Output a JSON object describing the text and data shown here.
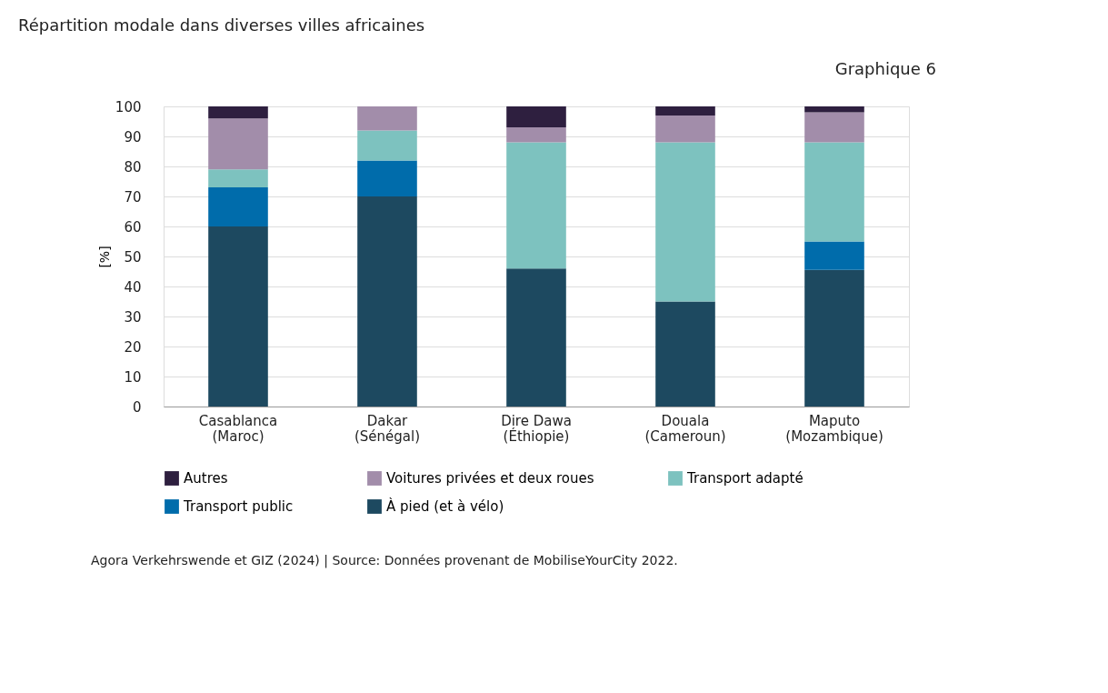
{
  "chart_data": {
    "type": "bar",
    "title": "Répartition modale dans diverses villes africaines",
    "ylabel": "[%]",
    "categories": [
      "Casablanca\n(Maroc)",
      "Dakar\n(Sénégal)",
      "Dire Dawa\n(Éthiopie)",
      "Douala\n(Cameroun)",
      "Maputo\n(Mozambique)"
    ],
    "stacked": true,
    "series": [
      {
        "name": "À pied (et à vélo)",
        "color": "#1d4960",
        "values": [
          60,
          70,
          46,
          35,
          45.5
        ]
      },
      {
        "name": "Transport public",
        "color": "#006cab",
        "values": [
          13,
          12,
          0,
          0,
          9.5
        ]
      },
      {
        "name": "Transport adapté",
        "color": "#7dc2bf",
        "values": [
          6,
          10,
          42,
          53,
          33
        ]
      },
      {
        "name": "Voitures privées et deux roues",
        "color": "#a28daa",
        "values": [
          17,
          8,
          5,
          9,
          10
        ]
      },
      {
        "name": "Autres",
        "color": "#2e1f3f",
        "values": [
          4,
          0,
          7,
          3,
          2
        ]
      }
    ],
    "ylim": [
      0,
      100
    ],
    "yticks": [
      0,
      10,
      20,
      30,
      40,
      50,
      60,
      70,
      80,
      90,
      100
    ],
    "grid": "y",
    "legend": "bottom",
    "annotations": [
      "Graphique 6",
      "Agora Verkehrswende et GIZ (2024) | Source: Données provenant de MobiliseYourCity 2022."
    ]
  }
}
